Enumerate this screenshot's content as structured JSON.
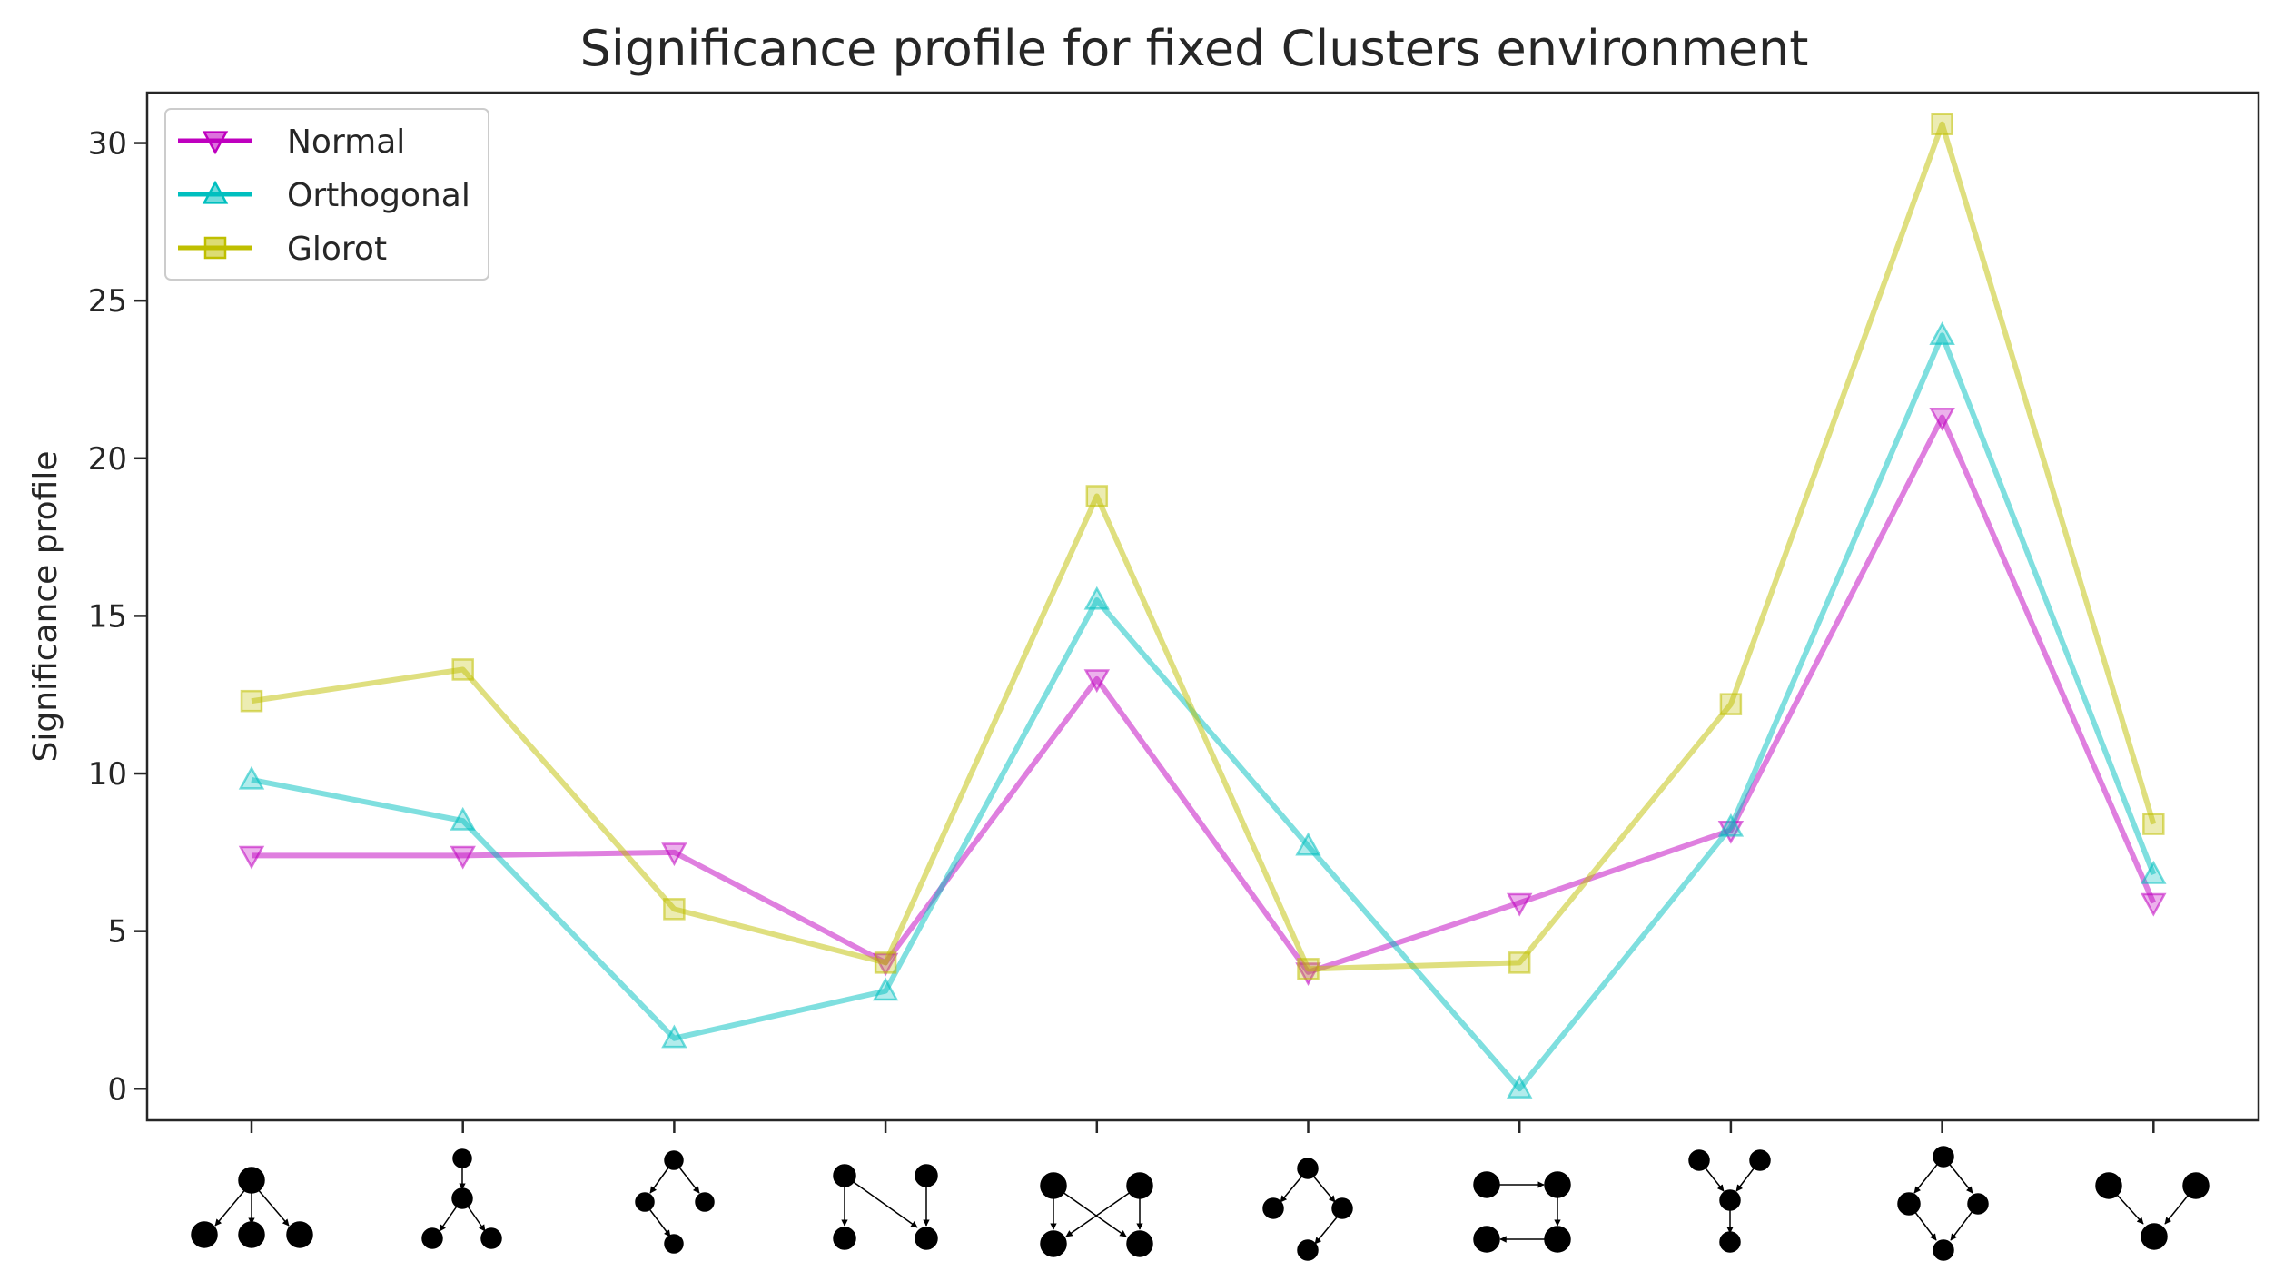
{
  "chart_data": {
    "type": "line",
    "title": "Significance profile for fixed Clusters environment",
    "xlabel": "",
    "ylabel": "Significance profile",
    "ylim": [
      -1,
      31.6
    ],
    "yticks": [
      0,
      5,
      10,
      15,
      20,
      25,
      30
    ],
    "grid": false,
    "legend_position": "top-left",
    "x_categories": [
      "motif-1",
      "motif-2",
      "motif-3",
      "motif-4",
      "motif-5",
      "motif-6",
      "motif-7",
      "motif-8",
      "motif-9",
      "motif-10"
    ],
    "series": [
      {
        "name": "Normal",
        "color": "#bf00bf",
        "marker": "triangle-down",
        "values": [
          7.4,
          7.4,
          7.5,
          4.0,
          13.0,
          3.7,
          5.9,
          8.2,
          21.3,
          5.9
        ]
      },
      {
        "name": "Orthogonal",
        "color": "#00bfbf",
        "marker": "triangle-up",
        "values": [
          9.8,
          8.5,
          1.6,
          3.1,
          15.5,
          7.7,
          0.0,
          8.3,
          23.9,
          6.8
        ]
      },
      {
        "name": "Glorot",
        "color": "#bfbf00",
        "marker": "square",
        "values": [
          12.3,
          13.3,
          5.7,
          4.0,
          18.8,
          3.8,
          4.0,
          12.2,
          30.6,
          8.4
        ]
      }
    ]
  }
}
